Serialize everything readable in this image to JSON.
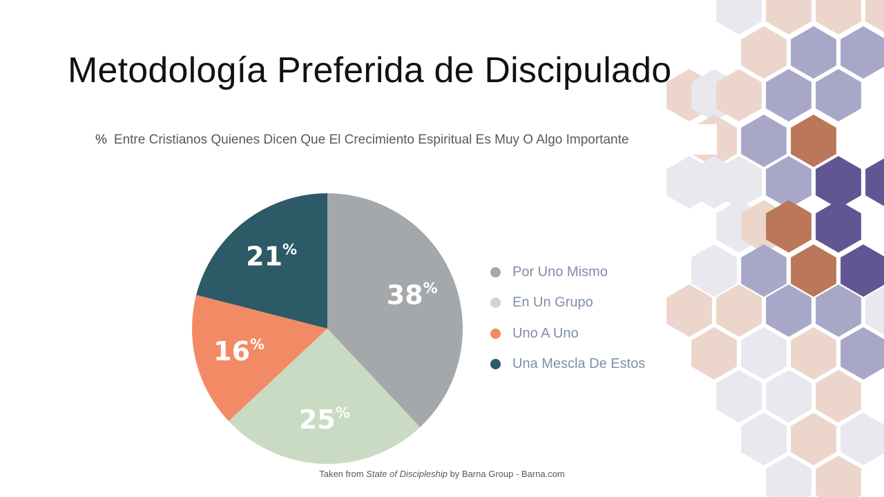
{
  "title": "Metodología Preferida de Discipulado",
  "subtitle_symbol": "%",
  "subtitle": "Entre Cristianos Quienes Dicen Que El Crecimiento Espiritual Es Muy O Algo Importante",
  "source": {
    "prefix": "Taken from",
    "book": "State of Discipleship",
    "suffix": "by Barna Group - Barna.com"
  },
  "colors": {
    "hex_light": "#e8e8ee",
    "hex_peach": "#ecd6cb",
    "hex_lavender": "#a9a7c8",
    "hex_rust": "#bb7759",
    "hex_purple": "#615693"
  },
  "chart_data": {
    "type": "pie",
    "title": "Metodología Preferida de Discipulado",
    "start_angle_deg": 0,
    "direction": "clockwise",
    "legend_position": "right",
    "slices": [
      {
        "label": "Por Uno Mismo",
        "value": 38,
        "display": "38%",
        "color": "#a5a8ab"
      },
      {
        "label": "En Un Grupo",
        "value": 25,
        "display": "25%",
        "color": "#c9dbc2"
      },
      {
        "label": "Uno A Uno",
        "value": 16,
        "display": "16%",
        "color": "#f28b65"
      },
      {
        "label": "Una Mescla De Estos",
        "value": 21,
        "display": "21%",
        "color": "#2c5a66"
      }
    ]
  }
}
